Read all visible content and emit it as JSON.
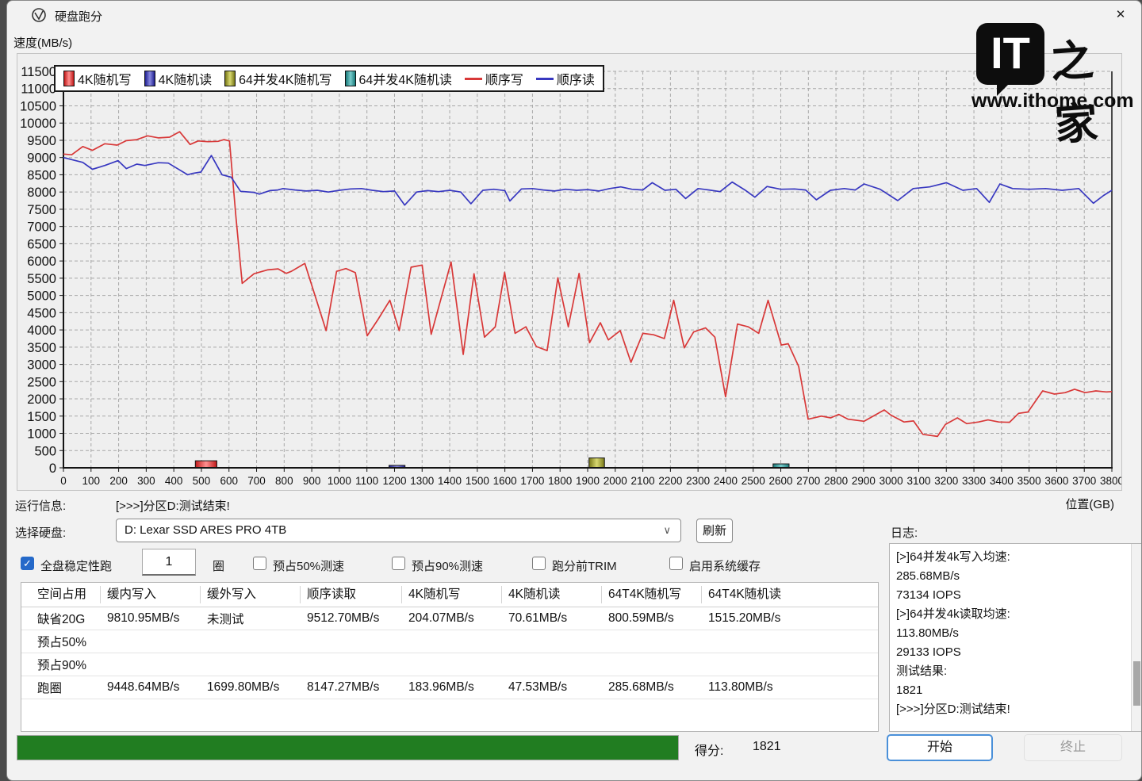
{
  "window": {
    "title": "硬盘跑分",
    "close_glyph": "✕"
  },
  "watermark": {
    "it": "IT",
    "zhijia": "之家",
    "url": "www.ithome.com"
  },
  "chart": {
    "y_axis_label": "速度(MB/s)",
    "x_axis_label": "位置(GB)",
    "x": {
      "min": 0,
      "max": 3800,
      "step": 100
    },
    "y": {
      "min": 0,
      "max": 11500,
      "step": 500
    },
    "legend": [
      {
        "label": "4K随机写",
        "type": "box",
        "color_edge": "#c01818",
        "color_center": "#ff9090"
      },
      {
        "label": "4K随机读",
        "type": "box",
        "color_edge": "#202090",
        "color_center": "#8888e0"
      },
      {
        "label": "64并发4K随机写",
        "type": "box",
        "color_edge": "#787818",
        "color_center": "#d8d870"
      },
      {
        "label": "64并发4K随机读",
        "type": "box",
        "color_edge": "#187878",
        "color_center": "#78cccc"
      },
      {
        "label": "顺序写",
        "type": "line",
        "color": "#d83838"
      },
      {
        "label": "顺序读",
        "type": "line",
        "color": "#3838c0"
      }
    ]
  },
  "chart_data": {
    "type": "line",
    "xlabel": "位置(GB)",
    "ylabel": "速度(MB/s)",
    "xlim": [
      0,
      3800
    ],
    "ylim": [
      0,
      11500
    ],
    "grid": true,
    "legend_position": "top-left",
    "series": [
      {
        "name": "顺序写",
        "color": "#d83838",
        "points": [
          [
            0,
            9100
          ],
          [
            30,
            9080
          ],
          [
            70,
            9320
          ],
          [
            105,
            9210
          ],
          [
            150,
            9400
          ],
          [
            195,
            9360
          ],
          [
            228,
            9490
          ],
          [
            266,
            9520
          ],
          [
            305,
            9630
          ],
          [
            345,
            9570
          ],
          [
            385,
            9590
          ],
          [
            421,
            9750
          ],
          [
            459,
            9380
          ],
          [
            488,
            9480
          ],
          [
            524,
            9460
          ],
          [
            560,
            9470
          ],
          [
            582,
            9520
          ],
          [
            602,
            9480
          ],
          [
            625,
            7300
          ],
          [
            648,
            5350
          ],
          [
            691,
            5630
          ],
          [
            739,
            5740
          ],
          [
            778,
            5770
          ],
          [
            807,
            5640
          ],
          [
            826,
            5700
          ],
          [
            875,
            5930
          ],
          [
            952,
            3980
          ],
          [
            990,
            5700
          ],
          [
            1024,
            5780
          ],
          [
            1058,
            5660
          ],
          [
            1101,
            3830
          ],
          [
            1140,
            4300
          ],
          [
            1183,
            4860
          ],
          [
            1217,
            3980
          ],
          [
            1260,
            5820
          ],
          [
            1300,
            5880
          ],
          [
            1333,
            3870
          ],
          [
            1405,
            5970
          ],
          [
            1449,
            3290
          ],
          [
            1488,
            5630
          ],
          [
            1526,
            3790
          ],
          [
            1565,
            4090
          ],
          [
            1599,
            5670
          ],
          [
            1637,
            3900
          ],
          [
            1676,
            4090
          ],
          [
            1714,
            3520
          ],
          [
            1753,
            3400
          ],
          [
            1792,
            5510
          ],
          [
            1830,
            4090
          ],
          [
            1869,
            5640
          ],
          [
            1907,
            3630
          ],
          [
            1946,
            4210
          ],
          [
            1975,
            3710
          ],
          [
            2018,
            3980
          ],
          [
            2057,
            3060
          ],
          [
            2100,
            3900
          ],
          [
            2139,
            3860
          ],
          [
            2178,
            3750
          ],
          [
            2212,
            4860
          ],
          [
            2250,
            3480
          ],
          [
            2284,
            3940
          ],
          [
            2327,
            4060
          ],
          [
            2361,
            3790
          ],
          [
            2400,
            2060
          ],
          [
            2443,
            4170
          ],
          [
            2482,
            4090
          ],
          [
            2520,
            3900
          ],
          [
            2554,
            4860
          ],
          [
            2602,
            3560
          ],
          [
            2627,
            3600
          ],
          [
            2665,
            2940
          ],
          [
            2699,
            1410
          ],
          [
            2747,
            1500
          ],
          [
            2781,
            1450
          ],
          [
            2810,
            1550
          ],
          [
            2844,
            1410
          ],
          [
            2902,
            1350
          ],
          [
            2975,
            1680
          ],
          [
            2999,
            1530
          ],
          [
            3047,
            1330
          ],
          [
            3081,
            1360
          ],
          [
            3115,
            970
          ],
          [
            3168,
            910
          ],
          [
            3197,
            1260
          ],
          [
            3240,
            1450
          ],
          [
            3274,
            1280
          ],
          [
            3317,
            1330
          ],
          [
            3351,
            1390
          ],
          [
            3390,
            1330
          ],
          [
            3429,
            1320
          ],
          [
            3462,
            1580
          ],
          [
            3496,
            1620
          ],
          [
            3549,
            2230
          ],
          [
            3592,
            2140
          ],
          [
            3631,
            2180
          ],
          [
            3665,
            2280
          ],
          [
            3703,
            2180
          ],
          [
            3742,
            2230
          ],
          [
            3780,
            2200
          ],
          [
            3800,
            2210
          ]
        ]
      },
      {
        "name": "顺序读",
        "color": "#3838c0",
        "points": [
          [
            0,
            9000
          ],
          [
            70,
            8860
          ],
          [
            105,
            8660
          ],
          [
            150,
            8770
          ],
          [
            198,
            8910
          ],
          [
            228,
            8680
          ],
          [
            266,
            8810
          ],
          [
            295,
            8770
          ],
          [
            344,
            8850
          ],
          [
            380,
            8840
          ],
          [
            411,
            8690
          ],
          [
            450,
            8500
          ],
          [
            468,
            8540
          ],
          [
            498,
            8580
          ],
          [
            536,
            9060
          ],
          [
            575,
            8500
          ],
          [
            594,
            8460
          ],
          [
            608,
            8430
          ],
          [
            642,
            8020
          ],
          [
            690,
            7990
          ],
          [
            710,
            7940
          ],
          [
            748,
            8040
          ],
          [
            777,
            8060
          ],
          [
            796,
            8100
          ],
          [
            840,
            8060
          ],
          [
            880,
            8030
          ],
          [
            920,
            8050
          ],
          [
            960,
            8000
          ],
          [
            1000,
            8050
          ],
          [
            1040,
            8090
          ],
          [
            1080,
            8100
          ],
          [
            1120,
            8050
          ],
          [
            1160,
            8010
          ],
          [
            1200,
            8030
          ],
          [
            1237,
            7620
          ],
          [
            1280,
            8000
          ],
          [
            1320,
            8040
          ],
          [
            1360,
            8010
          ],
          [
            1400,
            8050
          ],
          [
            1440,
            8000
          ],
          [
            1477,
            7660
          ],
          [
            1520,
            8050
          ],
          [
            1560,
            8080
          ],
          [
            1600,
            8040
          ],
          [
            1618,
            7740
          ],
          [
            1660,
            8090
          ],
          [
            1700,
            8100
          ],
          [
            1740,
            8060
          ],
          [
            1780,
            8030
          ],
          [
            1820,
            8080
          ],
          [
            1860,
            8050
          ],
          [
            1900,
            8070
          ],
          [
            1940,
            8030
          ],
          [
            1980,
            8100
          ],
          [
            2020,
            8150
          ],
          [
            2060,
            8080
          ],
          [
            2100,
            8060
          ],
          [
            2134,
            8270
          ],
          [
            2180,
            8050
          ],
          [
            2220,
            8080
          ],
          [
            2255,
            7810
          ],
          [
            2300,
            8100
          ],
          [
            2340,
            8060
          ],
          [
            2380,
            8010
          ],
          [
            2424,
            8290
          ],
          [
            2470,
            8060
          ],
          [
            2506,
            7850
          ],
          [
            2550,
            8160
          ],
          [
            2600,
            8080
          ],
          [
            2650,
            8090
          ],
          [
            2690,
            8060
          ],
          [
            2729,
            7775
          ],
          [
            2780,
            8050
          ],
          [
            2830,
            8100
          ],
          [
            2870,
            8060
          ],
          [
            2902,
            8235
          ],
          [
            2960,
            8080
          ],
          [
            3024,
            7750
          ],
          [
            3080,
            8100
          ],
          [
            3140,
            8150
          ],
          [
            3200,
            8270
          ],
          [
            3260,
            8050
          ],
          [
            3310,
            8100
          ],
          [
            3356,
            7700
          ],
          [
            3394,
            8235
          ],
          [
            3440,
            8100
          ],
          [
            3500,
            8080
          ],
          [
            3560,
            8100
          ],
          [
            3620,
            8050
          ],
          [
            3680,
            8100
          ],
          [
            3733,
            7675
          ],
          [
            3770,
            7900
          ],
          [
            3800,
            8050
          ]
        ]
      }
    ],
    "bars": [
      {
        "label": "4K随机写",
        "x": 478,
        "width": 78,
        "value": 204.07,
        "color_edge": "#c01818",
        "color_center": "#ff9090"
      },
      {
        "label": "4K随机读",
        "x": 1180,
        "width": 58,
        "value": 70.61,
        "color_edge": "#202090",
        "color_center": "#8888e0"
      },
      {
        "label": "64并发4K随机写",
        "x": 1905,
        "width": 56,
        "value": 285.68,
        "color_edge": "#787818",
        "color_center": "#d8d870"
      },
      {
        "label": "64并发4K随机读",
        "x": 2572,
        "width": 58,
        "value": 113.8,
        "color_edge": "#187878",
        "color_center": "#78cccc"
      }
    ]
  },
  "run_info": {
    "label": "运行信息:",
    "value": "[>>>]分区D:测试结束!"
  },
  "disk": {
    "label": "选择硬盘:",
    "selected": "D: Lexar SSD ARES PRO 4TB",
    "chevron": "∨",
    "refresh": "刷新"
  },
  "options": {
    "stability": {
      "label": "全盘稳定性跑",
      "checked": true,
      "check_glyph": "✓"
    },
    "loops": {
      "value": "1",
      "suffix": "圈"
    },
    "others": [
      {
        "label": "预占50%测速",
        "checked": false
      },
      {
        "label": "预占90%测速",
        "checked": false
      },
      {
        "label": "跑分前TRIM",
        "checked": false
      },
      {
        "label": "启用系统缓存",
        "checked": false
      }
    ]
  },
  "table": {
    "headers": [
      "空间占用",
      "缓内写入",
      "缓外写入",
      "顺序读取",
      "4K随机写",
      "4K随机读",
      "64T4K随机写",
      "64T4K随机读"
    ],
    "rows": [
      [
        "缺省20G",
        "9810.95MB/s",
        "未测试",
        "9512.70MB/s",
        "204.07MB/s",
        "70.61MB/s",
        "800.59MB/s",
        "1515.20MB/s"
      ],
      [
        "预占50%",
        "",
        "",
        "",
        "",
        "",
        "",
        ""
      ],
      [
        "预占90%",
        "",
        "",
        "",
        "",
        "",
        "",
        ""
      ],
      [
        "跑圈",
        "9448.64MB/s",
        "1699.80MB/s",
        "8147.27MB/s",
        "183.96MB/s",
        "47.53MB/s",
        "285.68MB/s",
        "113.80MB/s"
      ]
    ]
  },
  "log": {
    "label": "日志:",
    "lines": [
      "[>]64并发4k写入均速:",
      "285.68MB/s",
      "73134 IOPS",
      "[>]64并发4k读取均速:",
      "113.80MB/s",
      "29133 IOPS",
      "测试结果:",
      "1821",
      "[>>>]分区D:测试结束!"
    ]
  },
  "footer": {
    "progress_percent": 100,
    "progress_color": "#217d21",
    "score_label": "得分:",
    "score": "1821",
    "start": "开始",
    "stop": "终止"
  }
}
